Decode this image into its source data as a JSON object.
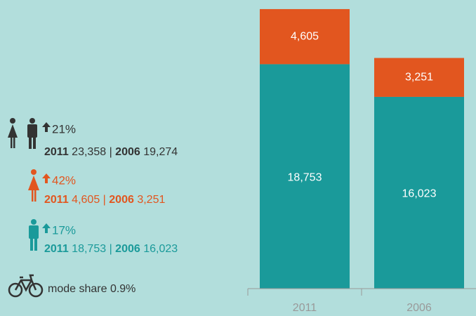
{
  "chart_data": {
    "type": "bar",
    "stacked": true,
    "categories": [
      "2011",
      "2006"
    ],
    "series": [
      {
        "color": "#1a9a9a",
        "values": [
          18753,
          16023
        ],
        "value_labels": [
          "18,753",
          "16,023"
        ]
      },
      {
        "color": "#e2561f",
        "values": [
          4605,
          3251
        ],
        "value_labels": [
          "4,605",
          "3,251"
        ]
      }
    ],
    "ylim": [
      0,
      24000
    ]
  },
  "stats": {
    "separator": "|",
    "total": {
      "change": "21%",
      "year1": "2011",
      "value1": "23,358",
      "year2": "2006",
      "value2": "19,274"
    },
    "women": {
      "change": "42%",
      "year1": "2011",
      "value1": "4,605",
      "year2": "2006",
      "value2": "3,251"
    },
    "men": {
      "change": "17%",
      "year1": "2011",
      "value1": "18,753",
      "year2": "2006",
      "value2": "16,023"
    },
    "bike": "mode share 0.9%"
  }
}
